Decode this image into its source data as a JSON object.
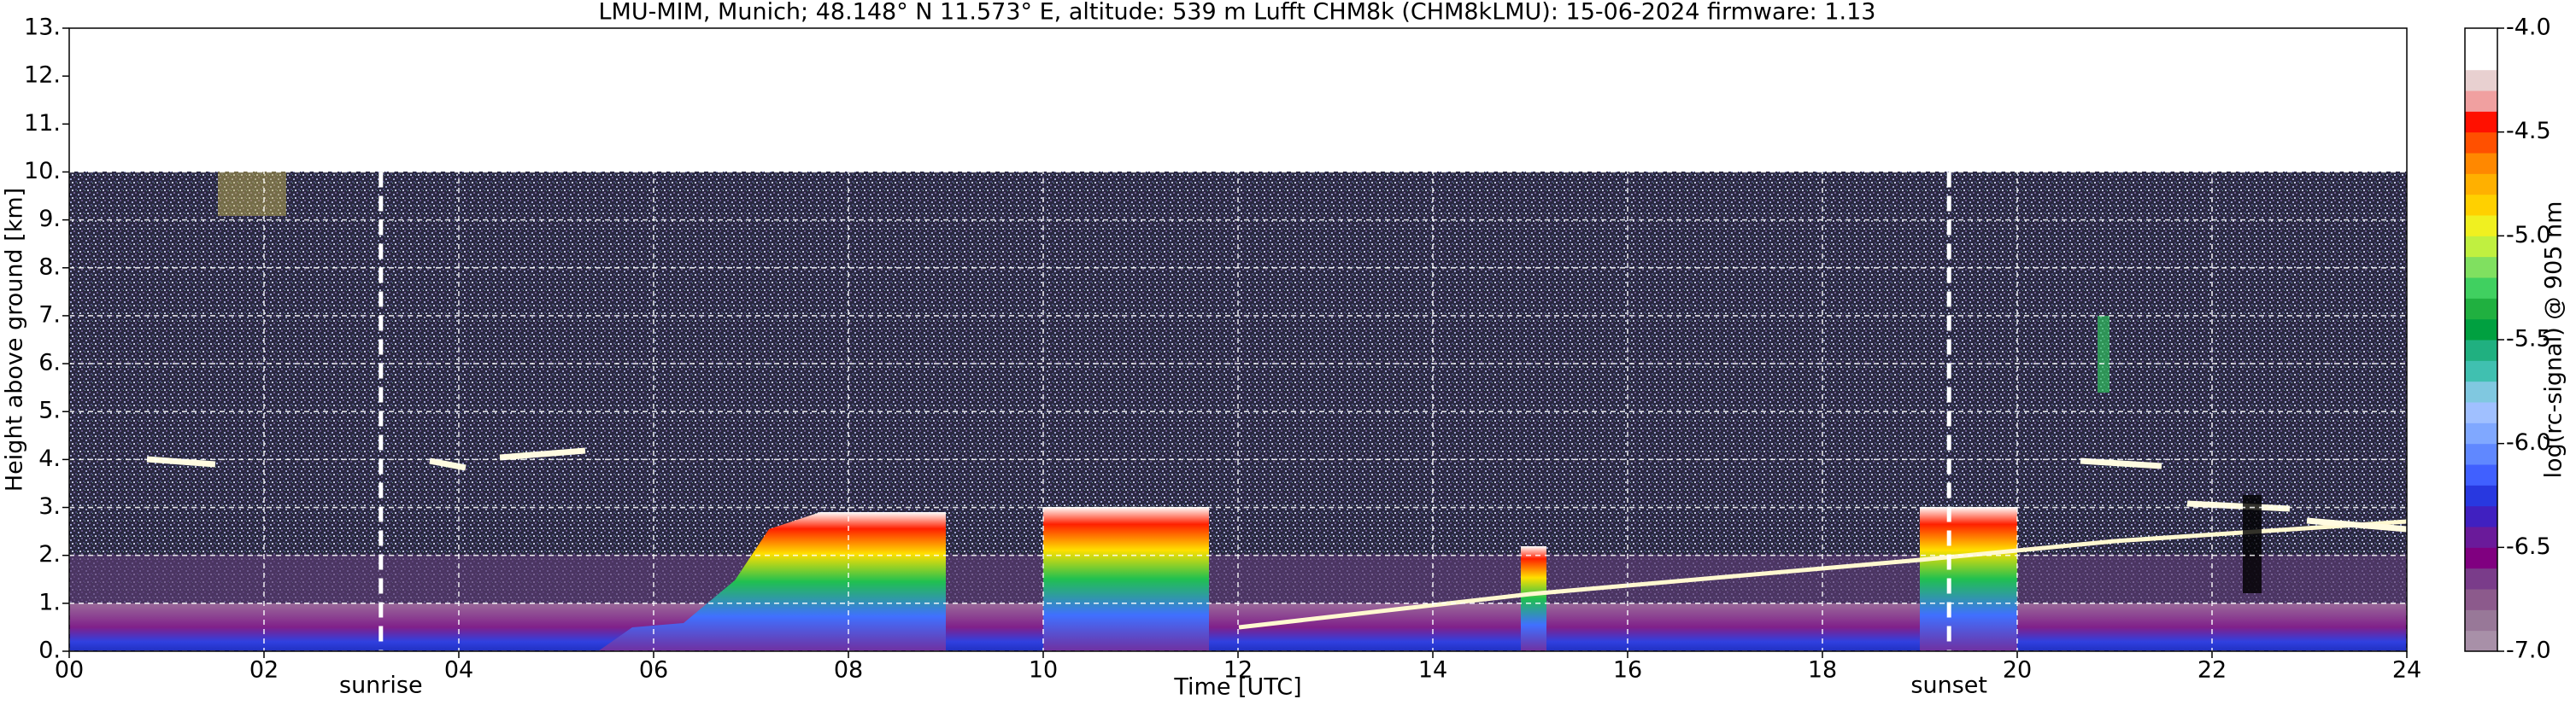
{
  "chart_data": {
    "type": "heatmap",
    "title": "LMU-MIM, Munich; 48.148° N 11.573° E, altitude: 539 m    Lufft CHM8k (CHM8kLMU): 15-06-2024    firmware: 1.13",
    "x_label": "Time [UTC]",
    "y_label": "Height above ground [km]",
    "xlim": [
      0,
      24
    ],
    "xticks": [
      {
        "value": 0,
        "label": "00"
      },
      {
        "value": 2,
        "label": "02"
      },
      {
        "value": 4,
        "label": "04"
      },
      {
        "value": 6,
        "label": "06"
      },
      {
        "value": 8,
        "label": "08"
      },
      {
        "value": 10,
        "label": "10"
      },
      {
        "value": 12,
        "label": "12"
      },
      {
        "value": 14,
        "label": "14"
      },
      {
        "value": 16,
        "label": "16"
      },
      {
        "value": 18,
        "label": "18"
      },
      {
        "value": 20,
        "label": "20"
      },
      {
        "value": 22,
        "label": "22"
      },
      {
        "value": 24,
        "label": "24"
      }
    ],
    "ylim": [
      0,
      13
    ],
    "yticks": [
      {
        "value": 0,
        "label": "0."
      },
      {
        "value": 1,
        "label": "1."
      },
      {
        "value": 2,
        "label": "2."
      },
      {
        "value": 3,
        "label": "3."
      },
      {
        "value": 4,
        "label": "4."
      },
      {
        "value": 5,
        "label": "5."
      },
      {
        "value": 6,
        "label": "6."
      },
      {
        "value": 7,
        "label": "7."
      },
      {
        "value": 8,
        "label": "8."
      },
      {
        "value": 9,
        "label": "9."
      },
      {
        "value": 10,
        "label": "10."
      },
      {
        "value": 11,
        "label": "11."
      },
      {
        "value": 12,
        "label": "12."
      },
      {
        "value": 13,
        "label": "13."
      }
    ],
    "grid": true,
    "annotations": [
      {
        "text": "sunrise",
        "x": 3.2
      },
      {
        "text": "sunset",
        "x": 19.3
      }
    ],
    "colorbar": {
      "label": "log(rc-signal) @ 905 nm",
      "clim": [
        -7,
        -4
      ],
      "ticks": [
        {
          "value": -7,
          "label": "-7.0"
        },
        {
          "value": -6.5,
          "label": "-6.5"
        },
        {
          "value": -6,
          "label": "-6.0"
        },
        {
          "value": -5.5,
          "label": "-5.5"
        },
        {
          "value": -5,
          "label": "-5.0"
        },
        {
          "value": -4.5,
          "label": "-4.5"
        },
        {
          "value": -4,
          "label": "-4.0"
        }
      ],
      "colors": [
        "#a890a8",
        "#987898",
        "#8c5a8c",
        "#7a3c8a",
        "#800080",
        "#6a1a9a",
        "#4020c0",
        "#2838e0",
        "#4060ff",
        "#6088ff",
        "#80a8ff",
        "#a0c0ff",
        "#80c8e0",
        "#40c0b0",
        "#20b080",
        "#00a040",
        "#20b040",
        "#40d060",
        "#80e060",
        "#c0f040",
        "#f0f020",
        "#ffd000",
        "#ffb000",
        "#ff8800",
        "#ff5000",
        "#ff1000",
        "#f0a0a0",
        "#e8d0d0",
        "#ffffff",
        "#ffffff"
      ]
    }
  }
}
